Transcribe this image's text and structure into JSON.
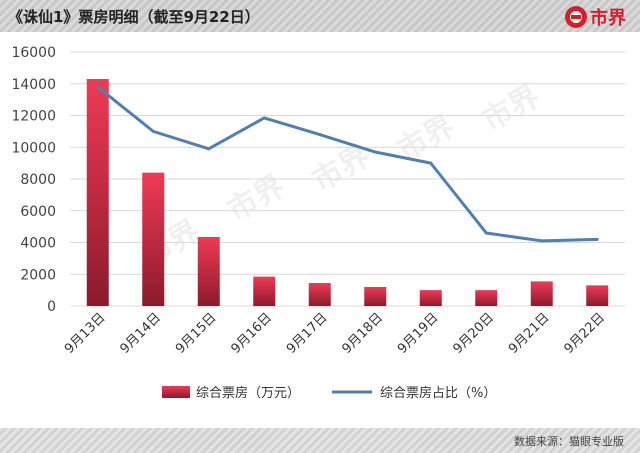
{
  "header": {
    "title": "《诛仙1》票房明细（截至9月22日）",
    "brand_name": "市界"
  },
  "footer": {
    "source": "数据来源：猫眼专业版"
  },
  "watermark": "市界",
  "colors": {
    "bar_top": "#f03a55",
    "bar_bottom": "#8c1a2c",
    "line": "#4f7fb3",
    "brand": "#d61f2c"
  },
  "chart_data": {
    "type": "bar",
    "categories": [
      "9月13日",
      "9月14日",
      "9月15日",
      "9月16日",
      "9月17日",
      "9月18日",
      "9月19日",
      "9月20日",
      "9月21日",
      "9月22日"
    ],
    "series": [
      {
        "name": "综合票房（万元）",
        "type": "bar",
        "values": [
          14300,
          8400,
          4350,
          1850,
          1450,
          1200,
          1000,
          1000,
          1550,
          1300
        ]
      },
      {
        "name": "综合票房占比（%）",
        "type": "line",
        "values": [
          13800,
          11000,
          9900,
          11850,
          10800,
          9700,
          9000,
          4600,
          4100,
          4200
        ]
      }
    ],
    "yticks": [
      0,
      2000,
      4000,
      6000,
      8000,
      10000,
      12000,
      14000,
      16000
    ],
    "ylim": [
      0,
      16000
    ],
    "grid": true,
    "legend_position": "bottom"
  }
}
